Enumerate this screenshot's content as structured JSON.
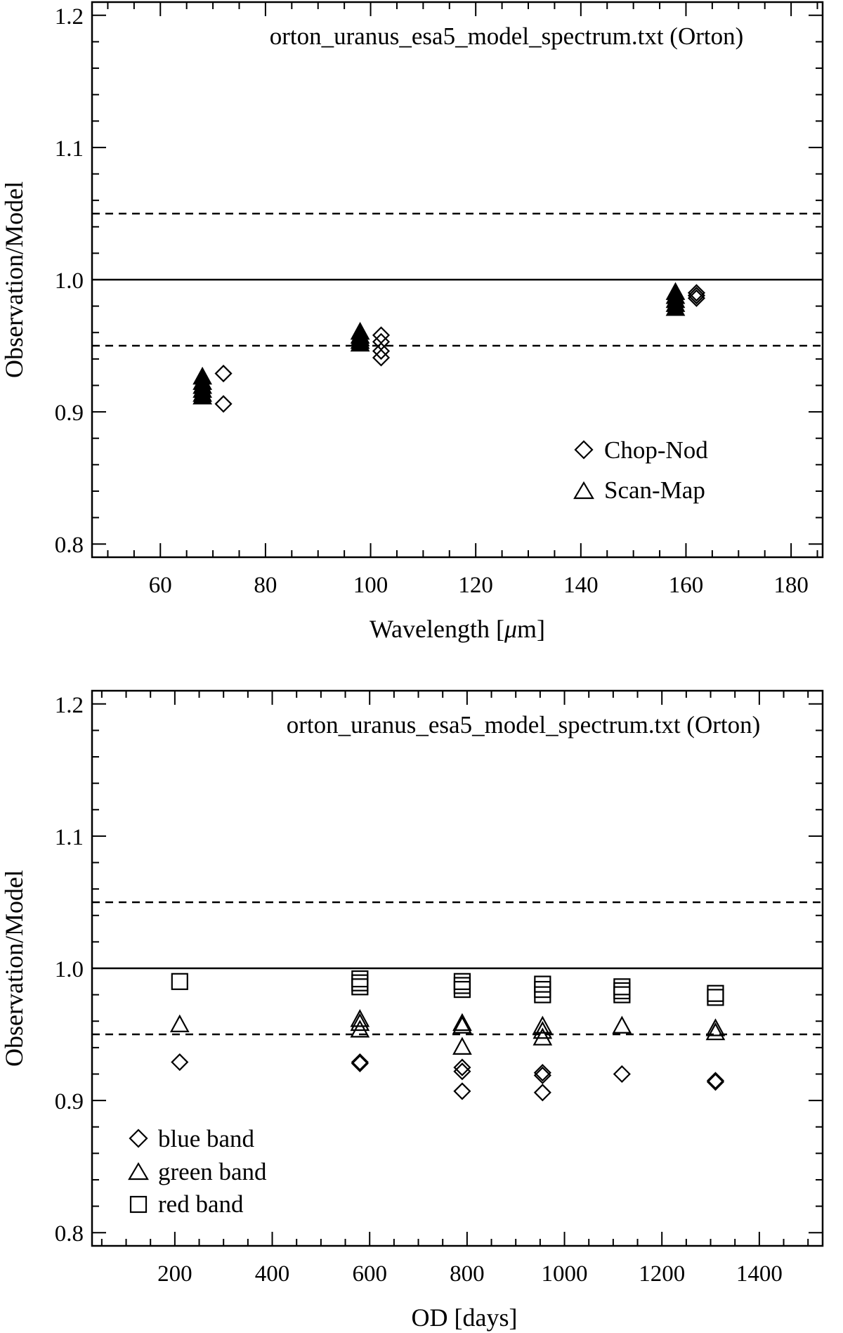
{
  "chart_data": [
    {
      "type": "scatter",
      "title": "orton_uranus_esa5_model_spectrum.txt (Orton)",
      "xlabel": "Wavelength [",
      "xlabel_mu": "μ",
      "xlabel_tail": "m]",
      "ylabel": "Observation/Model",
      "xlim": [
        47,
        186
      ],
      "ylim": [
        0.79,
        1.21
      ],
      "xticks": [
        60,
        80,
        100,
        120,
        140,
        160,
        180
      ],
      "yticks": [
        0.8,
        0.9,
        1.0,
        1.1,
        1.2
      ],
      "ytick_labels": [
        "0.8",
        "0.9",
        "1.0",
        "1.1",
        "1.2"
      ],
      "reference_lines": [
        {
          "y": 1.0,
          "style": "solid"
        },
        {
          "y": 1.05,
          "style": "dashed"
        },
        {
          "y": 0.95,
          "style": "dashed"
        }
      ],
      "legend_position": "bottom-right",
      "series": [
        {
          "name": "Chop-Nod",
          "marker": "diamond",
          "filled": false,
          "x": [
            72,
            72,
            102,
            102,
            102,
            102,
            162,
            162,
            162
          ],
          "y": [
            0.929,
            0.906,
            0.958,
            0.953,
            0.946,
            0.941,
            0.99,
            0.988,
            0.986
          ]
        },
        {
          "name": "Scan-Map",
          "marker": "triangle",
          "filled": true,
          "x": [
            68,
            68,
            68,
            68,
            68,
            68,
            98,
            98,
            98,
            98,
            98,
            158,
            158,
            158,
            158,
            158
          ],
          "y": [
            0.926,
            0.922,
            0.919,
            0.916,
            0.913,
            0.911,
            0.96,
            0.957,
            0.955,
            0.953,
            0.951,
            0.99,
            0.987,
            0.984,
            0.981,
            0.978
          ]
        }
      ]
    },
    {
      "type": "scatter",
      "title": "orton_uranus_esa5_model_spectrum.txt (Orton)",
      "xlabel": "OD [days]",
      "ylabel": "Observation/Model",
      "xlim": [
        30,
        1530
      ],
      "ylim": [
        0.79,
        1.21
      ],
      "xticks": [
        200,
        400,
        600,
        800,
        1000,
        1200,
        1400
      ],
      "yticks": [
        0.8,
        0.9,
        1.0,
        1.1,
        1.2
      ],
      "ytick_labels": [
        "0.8",
        "0.9",
        "1.0",
        "1.1",
        "1.2"
      ],
      "reference_lines": [
        {
          "y": 1.0,
          "style": "solid"
        },
        {
          "y": 1.05,
          "style": "dashed"
        },
        {
          "y": 0.95,
          "style": "dashed"
        }
      ],
      "legend_position": "bottom-left",
      "series": [
        {
          "name": "blue band",
          "marker": "diamond",
          "filled": false,
          "x": [
            210,
            580,
            580,
            790,
            790,
            790,
            955,
            955,
            955,
            1118,
            1310,
            1310
          ],
          "y": [
            0.929,
            0.929,
            0.928,
            0.925,
            0.922,
            0.907,
            0.921,
            0.919,
            0.906,
            0.92,
            0.915,
            0.914
          ]
        },
        {
          "name": "green band",
          "marker": "triangle",
          "filled": false,
          "x": [
            210,
            580,
            580,
            580,
            790,
            790,
            790,
            955,
            955,
            955,
            1118,
            1310,
            1310
          ],
          "y": [
            0.957,
            0.961,
            0.958,
            0.953,
            0.958,
            0.956,
            0.94,
            0.956,
            0.952,
            0.947,
            0.956,
            0.954,
            0.951
          ]
        },
        {
          "name": "red band",
          "marker": "square",
          "filled": false,
          "x": [
            210,
            580,
            580,
            580,
            790,
            790,
            790,
            955,
            955,
            955,
            1118,
            1118,
            1118,
            1310,
            1310
          ],
          "y": [
            0.99,
            0.992,
            0.989,
            0.986,
            0.99,
            0.987,
            0.984,
            0.988,
            0.984,
            0.98,
            0.986,
            0.983,
            0.98,
            0.981,
            0.978
          ]
        }
      ]
    }
  ]
}
